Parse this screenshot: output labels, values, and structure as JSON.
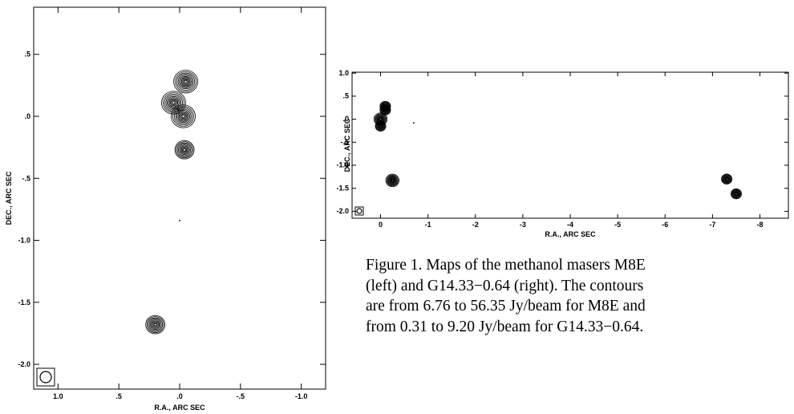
{
  "figure": {
    "caption_lines": [
      "Figure 1. Maps of the methanol masers M8E",
      "(left) and G14.33−0.64 (right). The contours",
      "are from 6.76 to 56.35 Jy/beam for M8E and",
      "from 0.31 to 9.20 Jy/beam for G14.33−0.64."
    ]
  },
  "chart_data": [
    {
      "type": "contour",
      "source": "M8E",
      "xlabel": "R.A., ARC SEC",
      "ylabel": "DEC., ARC SEC",
      "xlim": [
        1.2,
        -1.2
      ],
      "ylim": [
        -2.2,
        0.88
      ],
      "x_ticks": [
        1.0,
        0.5,
        0.0,
        -0.5,
        -1.0
      ],
      "x_tick_labels": [
        "1.0",
        ".5",
        ".0",
        "-.5",
        "-1.0"
      ],
      "y_ticks": [
        0.5,
        0.0,
        -0.5,
        -1.0,
        -1.5,
        -2.0
      ],
      "y_tick_labels": [
        ".5",
        ".0",
        "-.5",
        "-1.0",
        "-1.5",
        "-2.0"
      ],
      "contour_levels_jy_per_beam": [
        6.76,
        56.35
      ],
      "components": [
        {
          "ra": -0.05,
          "dec": 0.28,
          "peak": "strong"
        },
        {
          "ra": 0.05,
          "dec": 0.11,
          "peak": "strong"
        },
        {
          "ra": -0.03,
          "dec": 0.0,
          "peak": "strong"
        },
        {
          "ra": -0.04,
          "dec": -0.27,
          "peak": "medium"
        },
        {
          "ra": 0.2,
          "dec": -1.68,
          "peak": "medium"
        },
        {
          "ra": 0.0,
          "dec": -0.84,
          "peak": "faint"
        }
      ],
      "beam": "circle, bottom-left"
    },
    {
      "type": "contour",
      "source": "G14.33−0.64",
      "xlabel": "R.A., ARC SEC",
      "ylabel": "DEC., ARC SEC",
      "xlim": [
        0.6,
        -8.6
      ],
      "ylim": [
        -2.15,
        1.02
      ],
      "x_ticks": [
        0,
        -1,
        -2,
        -3,
        -4,
        -5,
        -6,
        -7,
        -8
      ],
      "x_tick_labels": [
        "0",
        "-1",
        "-2",
        "-3",
        "-4",
        "-5",
        "-6",
        "-7",
        "-8"
      ],
      "y_ticks": [
        1.0,
        0.5,
        0.0,
        -0.5,
        -1.0,
        -1.5,
        -2.0
      ],
      "y_tick_labels": [
        "1.0",
        ".5",
        ".0",
        "-.5",
        "-1.0",
        "-1.5",
        "-2.0"
      ],
      "contour_levels_jy_per_beam": [
        0.31,
        9.2
      ],
      "components": [
        {
          "ra": 0.0,
          "dec": 0.0,
          "peak": "strong"
        },
        {
          "ra": 0.0,
          "dec": -0.15,
          "peak": "medium"
        },
        {
          "ra": -0.1,
          "dec": 0.2,
          "peak": "medium"
        },
        {
          "ra": -0.1,
          "dec": 0.28,
          "peak": "medium"
        },
        {
          "ra": -0.25,
          "dec": -1.33,
          "peak": "strong"
        },
        {
          "ra": -0.7,
          "dec": -0.08,
          "peak": "faint"
        },
        {
          "ra": -7.3,
          "dec": -1.3,
          "peak": "medium"
        },
        {
          "ra": -7.5,
          "dec": -1.62,
          "peak": "medium"
        }
      ],
      "beam": "circle, bottom-left"
    }
  ]
}
